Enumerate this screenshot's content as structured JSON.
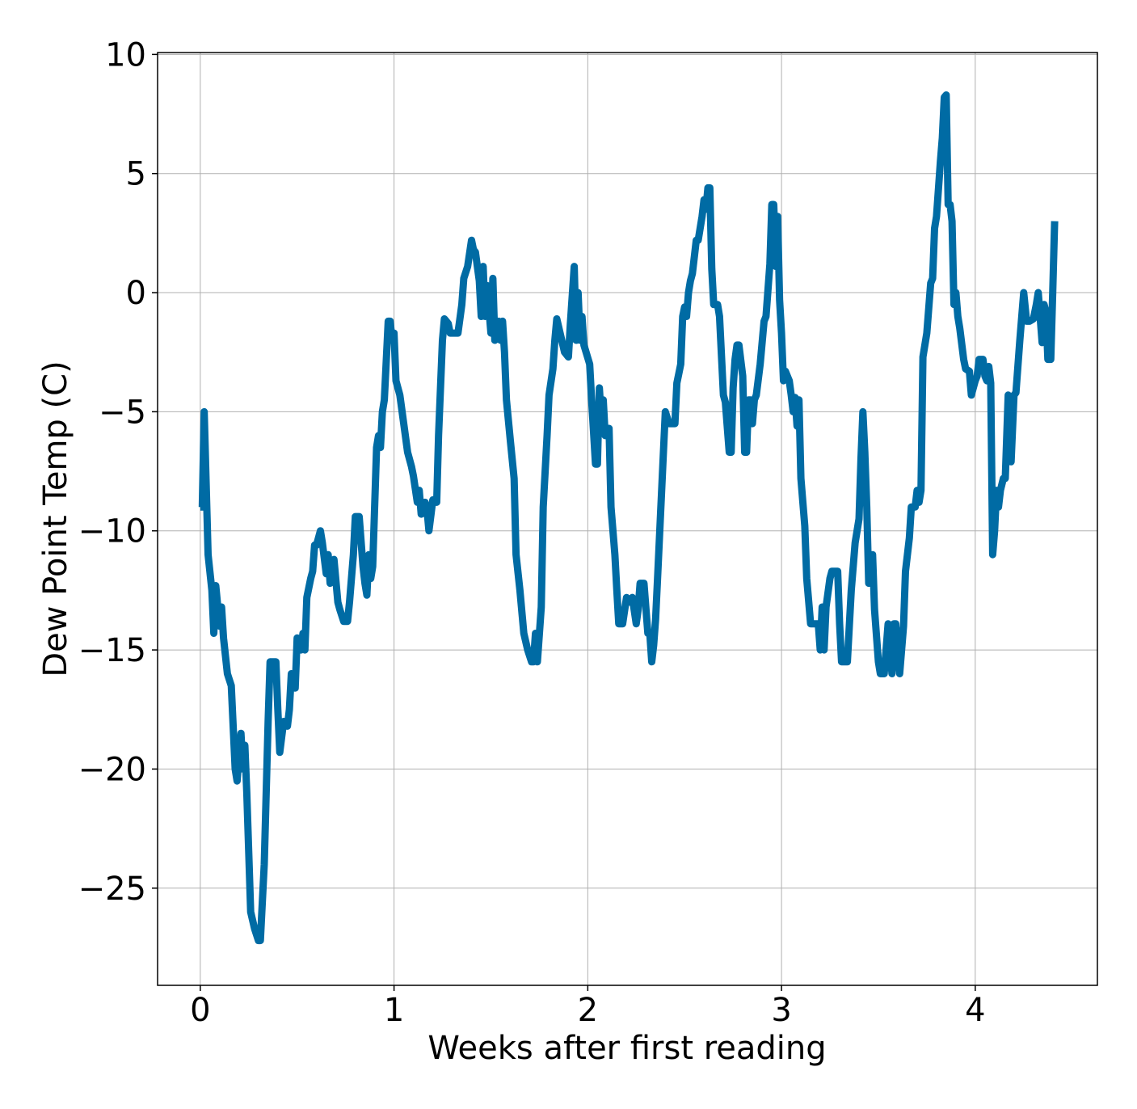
{
  "chart_data": {
    "type": "line",
    "xlabel": "Weeks after first reading",
    "ylabel": "Dew Point Temp (C)",
    "color": "#006ba4",
    "grid": true,
    "xlim": [
      -0.2205,
      4.6305
    ],
    "ylim": [
      -29.08,
      10.08
    ],
    "xticks": [
      0,
      1,
      2,
      3,
      4
    ],
    "yticks": [
      {
        "value": -25,
        "label": "−25"
      },
      {
        "value": -20,
        "label": "−20"
      },
      {
        "value": -15,
        "label": "−15"
      },
      {
        "value": -10,
        "label": "−10"
      },
      {
        "value": -5,
        "label": "−5"
      },
      0,
      5,
      10
    ],
    "x": [
      0.0,
      0.01,
      0.02,
      0.03,
      0.04,
      0.06,
      0.07,
      0.08,
      0.1,
      0.11,
      0.12,
      0.14,
      0.16,
      0.18,
      0.19,
      0.21,
      0.22,
      0.23,
      0.24,
      0.26,
      0.28,
      0.3,
      0.31,
      0.33,
      0.35,
      0.36,
      0.38,
      0.39,
      0.4,
      0.41,
      0.43,
      0.45,
      0.46,
      0.47,
      0.49,
      0.5,
      0.52,
      0.53,
      0.54,
      0.55,
      0.57,
      0.58,
      0.59,
      0.6,
      0.62,
      0.63,
      0.65,
      0.66,
      0.67,
      0.69,
      0.71,
      0.72,
      0.74,
      0.76,
      0.77,
      0.79,
      0.8,
      0.82,
      0.84,
      0.85,
      0.86,
      0.87,
      0.88,
      0.89,
      0.91,
      0.92,
      0.93,
      0.94,
      0.95,
      0.97,
      0.98,
      0.99,
      1.0,
      1.01,
      1.03,
      1.05,
      1.07,
      1.09,
      1.1,
      1.12,
      1.13,
      1.14,
      1.16,
      1.17,
      1.18,
      1.2,
      1.22,
      1.23,
      1.25,
      1.26,
      1.28,
      1.29,
      1.33,
      1.35,
      1.36,
      1.38,
      1.4,
      1.41,
      1.42,
      1.44,
      1.45,
      1.46,
      1.47,
      1.48,
      1.5,
      1.51,
      1.52,
      1.54,
      1.55,
      1.56,
      1.57,
      1.58,
      1.6,
      1.62,
      1.63,
      1.65,
      1.67,
      1.69,
      1.71,
      1.72,
      1.73,
      1.74,
      1.76,
      1.77,
      1.79,
      1.8,
      1.82,
      1.83,
      1.84,
      1.86,
      1.88,
      1.9,
      1.91,
      1.93,
      1.94,
      1.95,
      1.96,
      1.97,
      1.98,
      2.01,
      2.02,
      2.04,
      2.05,
      2.06,
      2.07,
      2.08,
      2.09,
      2.1,
      2.11,
      2.12,
      2.14,
      2.15,
      2.16,
      2.18,
      2.2,
      2.22,
      2.23,
      2.25,
      2.26,
      2.27,
      2.29,
      2.31,
      2.32,
      2.33,
      2.34,
      2.35,
      2.36,
      2.38,
      2.4,
      2.42,
      2.45,
      2.46,
      2.48,
      2.49,
      2.5,
      2.51,
      2.52,
      2.53,
      2.54,
      2.56,
      2.57,
      2.59,
      2.6,
      2.61,
      2.62,
      2.63,
      2.64,
      2.65,
      2.67,
      2.68,
      2.7,
      2.71,
      2.73,
      2.74,
      2.75,
      2.76,
      2.77,
      2.78,
      2.8,
      2.81,
      2.82,
      2.83,
      2.84,
      2.85,
      2.86,
      2.87,
      2.89,
      2.91,
      2.92,
      2.94,
      2.95,
      2.96,
      2.97,
      2.98,
      2.99,
      3.0,
      3.01,
      3.02,
      3.04,
      3.05,
      3.06,
      3.07,
      3.08,
      3.09,
      3.1,
      3.12,
      3.13,
      3.15,
      3.17,
      3.19,
      3.2,
      3.21,
      3.22,
      3.23,
      3.25,
      3.26,
      3.28,
      3.29,
      3.3,
      3.31,
      3.32,
      3.34,
      3.36,
      3.38,
      3.4,
      3.41,
      3.42,
      3.43,
      3.44,
      3.45,
      3.46,
      3.47,
      3.48,
      3.5,
      3.51,
      3.53,
      3.55,
      3.57,
      3.58,
      3.59,
      3.61,
      3.63,
      3.64,
      3.66,
      3.67,
      3.69,
      3.7,
      3.71,
      3.72,
      3.73,
      3.75,
      3.77,
      3.78,
      3.79,
      3.8,
      3.82,
      3.83,
      3.84,
      3.85,
      3.86,
      3.87,
      3.88,
      3.89,
      3.9,
      3.91,
      3.92,
      3.94,
      3.95,
      3.97,
      3.98,
      4.0,
      4.01,
      4.02,
      4.04,
      4.05,
      4.06,
      4.07,
      4.08,
      4.09,
      4.1,
      4.11,
      4.12,
      4.13,
      4.145,
      4.155,
      4.17,
      4.185,
      4.2,
      4.21,
      4.23,
      4.24,
      4.25,
      4.265,
      4.28,
      4.3,
      4.315,
      4.325,
      4.345,
      4.355,
      4.365,
      4.375,
      4.39,
      4.4,
      4.41
    ],
    "values": [
      -9,
      -9,
      -5,
      -8,
      -11,
      -12.5,
      -14.3,
      -12.3,
      -14,
      -13.2,
      -14.5,
      -16,
      -16.5,
      -20,
      -20.5,
      -18.5,
      -20,
      -19,
      -21,
      -26,
      -26.7,
      -27.2,
      -27.2,
      -24,
      -18,
      -15.5,
      -15.5,
      -15.5,
      -17.5,
      -19.3,
      -18,
      -18.2,
      -17.5,
      -16,
      -16.6,
      -14.5,
      -15,
      -14.3,
      -15,
      -12.8,
      -12,
      -11.7,
      -10.6,
      -10.6,
      -10,
      -10.5,
      -11.8,
      -11,
      -12.2,
      -11.2,
      -13,
      -13.3,
      -13.8,
      -13.8,
      -13,
      -11,
      -9.4,
      -9.4,
      -11.5,
      -12.2,
      -12.7,
      -11,
      -12,
      -11.5,
      -6.5,
      -6,
      -6.5,
      -5,
      -4.5,
      -1.2,
      -1.2,
      -2,
      -1.7,
      -3.7,
      -4.3,
      -5.5,
      -6.7,
      -7.3,
      -7.7,
      -8.8,
      -8.3,
      -9.3,
      -8.8,
      -9.1,
      -10,
      -8.7,
      -8.8,
      -6,
      -2,
      -1.1,
      -1.3,
      -1.7,
      -1.7,
      -0.5,
      0.6,
      1.1,
      2.2,
      1.8,
      1.7,
      0.5,
      -1,
      1.1,
      -1,
      0.3,
      -1.7,
      0.6,
      -2,
      -1.2,
      -2,
      -1.2,
      -2.5,
      -4.5,
      -6.2,
      -7.8,
      -11,
      -12.5,
      -14.3,
      -15,
      -15.5,
      -15.5,
      -14.3,
      -15.5,
      -13.2,
      -9,
      -6,
      -4.3,
      -3.2,
      -2,
      -1.1,
      -1.8,
      -2.5,
      -2.7,
      -1.3,
      1.1,
      -2,
      0,
      -2,
      -1,
      -2.2,
      -3,
      -4.5,
      -7.2,
      -7.2,
      -4,
      -5.3,
      -4.5,
      -6,
      -5.8,
      -5.7,
      -9,
      -11,
      -12.5,
      -13.9,
      -13.9,
      -12.8,
      -13,
      -12.8,
      -13.9,
      -13.3,
      -12.2,
      -12.2,
      -14.3,
      -14.3,
      -15.5,
      -14.8,
      -13.7,
      -12,
      -8.5,
      -5,
      -5.5,
      -5.5,
      -3.8,
      -3,
      -1,
      -0.6,
      -1,
      0,
      0.5,
      0.8,
      2.2,
      2.2,
      3.2,
      3.9,
      3.5,
      4.4,
      4.4,
      1,
      -0.5,
      -0.5,
      -1,
      -4.3,
      -4.6,
      -6.7,
      -6.7,
      -4,
      -2.8,
      -2.2,
      -2.2,
      -3.5,
      -6.7,
      -6.7,
      -4.5,
      -4.5,
      -5.5,
      -4.5,
      -4.3,
      -3,
      -1.2,
      -1,
      1.2,
      3.7,
      3.7,
      1.1,
      3.2,
      -0.3,
      -1.7,
      -3.7,
      -3.3,
      -3.7,
      -4.3,
      -5,
      -4.4,
      -5.6,
      -4.5,
      -7.8,
      -9.8,
      -12,
      -13.9,
      -13.9,
      -13.9,
      -15,
      -13.2,
      -15,
      -13.2,
      -12,
      -11.7,
      -11.7,
      -11.7,
      -13.9,
      -15.5,
      -15.5,
      -15.5,
      -12.5,
      -10.5,
      -9.5,
      -7,
      -5,
      -6.7,
      -9,
      -12.2,
      -11.3,
      -11,
      -13.3,
      -15.5,
      -16,
      -16,
      -13.9,
      -16,
      -13.9,
      -13.9,
      -16,
      -14,
      -11.7,
      -10.3,
      -9,
      -9,
      -8.3,
      -8.8,
      -8.3,
      -2.7,
      -1.7,
      0.4,
      0.6,
      2.7,
      3.2,
      5.5,
      6.5,
      8.2,
      8.3,
      3.7,
      3.7,
      3,
      -0.5,
      0,
      -1,
      -1.5,
      -2.8,
      -3.2,
      -3.3,
      -4.3,
      -3.7,
      -3.5,
      -2.8,
      -2.8,
      -3.5,
      -3.7,
      -3.1,
      -3.8,
      -11,
      -10,
      -8.3,
      -9,
      -8.3,
      -7.8,
      -7.8,
      -4.3,
      -7.1,
      -4.3,
      -4.2,
      -2,
      -1,
      0,
      -1.2,
      -1.2,
      -1.1,
      -0.5,
      0,
      -2.1,
      -0.5,
      -0.8,
      -2.8,
      -2.8,
      0,
      3
    ]
  }
}
